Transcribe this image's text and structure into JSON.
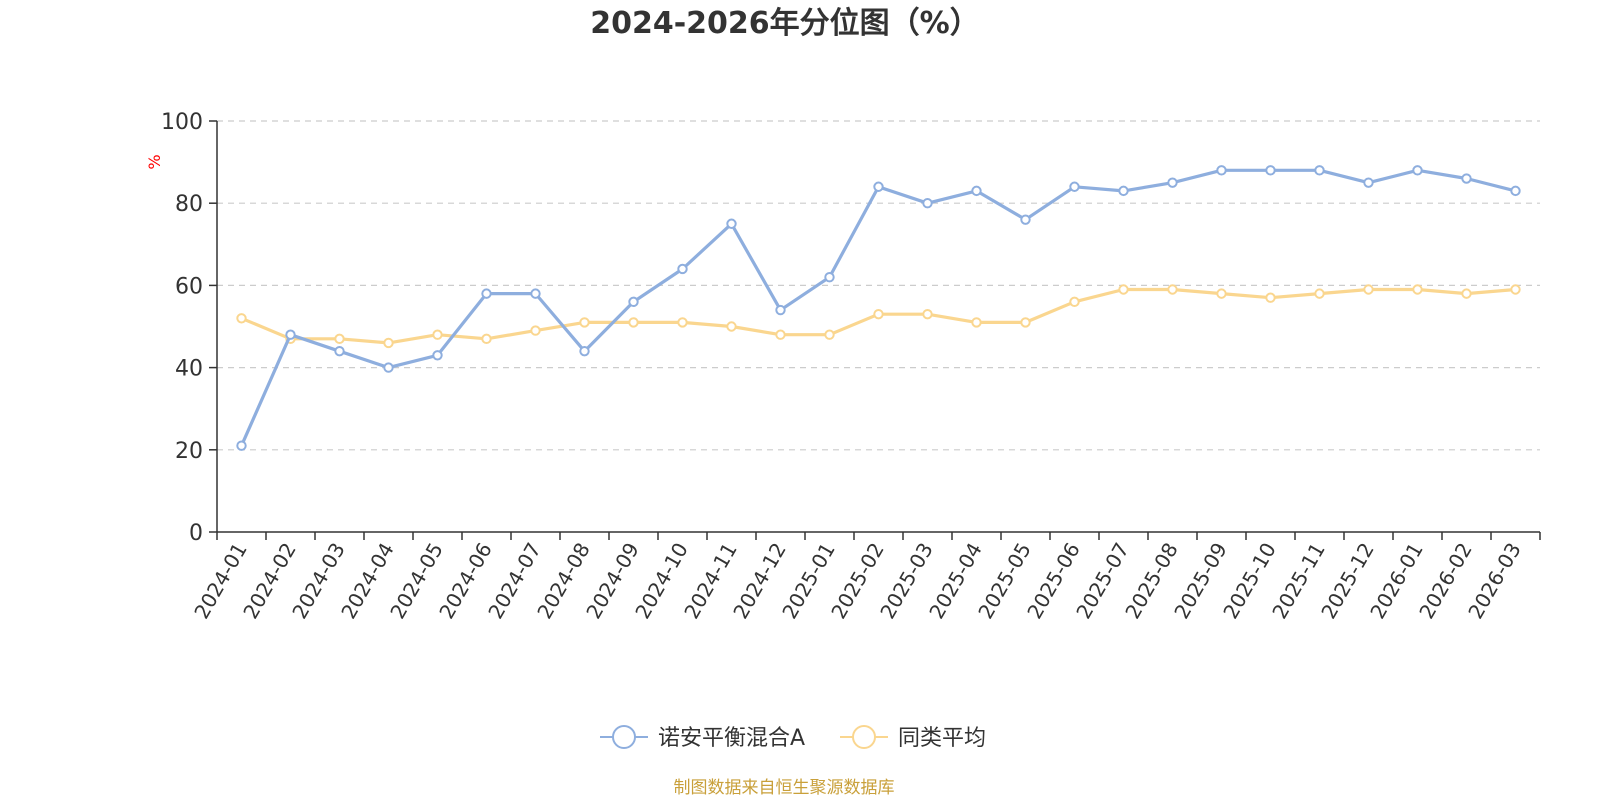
{
  "chart_data": {
    "type": "line",
    "title": "2024-2026年分位图（%）",
    "ylabel": "%",
    "ylim": [
      0,
      100
    ],
    "yticks": [
      0,
      20,
      40,
      60,
      80,
      100
    ],
    "ytick_labels": [
      "0",
      "20",
      "40",
      "60",
      "80",
      "100"
    ],
    "grid": "horizontal-dashed",
    "legend_position": "bottom-center",
    "categories": [
      "2024-01",
      "2024-02",
      "2024-03",
      "2024-04",
      "2024-05",
      "2024-06",
      "2024-07",
      "2024-08",
      "2024-09",
      "2024-10",
      "2024-11",
      "2024-12",
      "2025-01",
      "2025-02",
      "2025-03",
      "2025-04",
      "2025-05",
      "2025-06",
      "2025-07",
      "2025-08",
      "2025-09",
      "2025-10",
      "2025-11",
      "2025-12",
      "2026-01",
      "2026-02",
      "2026-03"
    ],
    "series": [
      {
        "name": "诺安平衡混合A",
        "color": "#8eaede",
        "values": [
          21,
          48,
          44,
          40,
          43,
          58,
          58,
          44,
          56,
          64,
          75,
          54,
          62,
          84,
          80,
          83,
          76,
          84,
          83,
          85,
          88,
          88,
          88,
          85,
          88,
          86,
          83
        ]
      },
      {
        "name": "同类平均",
        "color": "#fad68f",
        "values": [
          52,
          47,
          47,
          46,
          48,
          47,
          49,
          51,
          51,
          51,
          50,
          48,
          48,
          53,
          53,
          51,
          51,
          56,
          59,
          59,
          58,
          57,
          58,
          59,
          59,
          58,
          59
        ]
      }
    ]
  },
  "unit_label_color": "#ff0000",
  "source_text": "制图数据来自恒生聚源数据库",
  "source_color": "#c9a03a"
}
